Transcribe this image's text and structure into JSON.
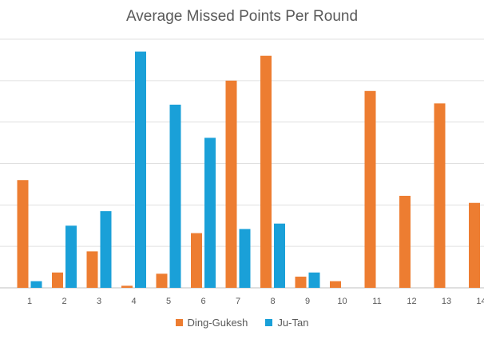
{
  "chart_data": {
    "type": "bar",
    "title": "Average Missed Points Per Round",
    "categories": [
      "1",
      "2",
      "3",
      "4",
      "5",
      "6",
      "7",
      "8",
      "9",
      "10",
      "11",
      "12",
      "13",
      "14"
    ],
    "series": [
      {
        "name": "Ding-Gukesh",
        "color": "#ed7d31",
        "values": [
          2.6,
          0.37,
          0.88,
          0.05,
          0.34,
          1.32,
          5.0,
          5.6,
          0.27,
          0.16,
          4.75,
          2.22,
          4.45,
          2.05
        ]
      },
      {
        "name": "Ju-Tan",
        "color": "#1aa0d8",
        "values": [
          0.16,
          1.5,
          1.85,
          5.7,
          4.42,
          3.62,
          1.42,
          1.55,
          0.37,
          null,
          null,
          null,
          null,
          null
        ]
      }
    ],
    "ylim": [
      0,
      6
    ],
    "grid": true,
    "legend_position": "bottom"
  }
}
